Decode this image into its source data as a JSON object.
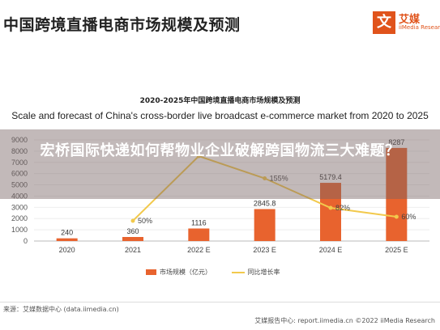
{
  "header": {
    "title": "中国跨境直播电商市场规模及预测",
    "brand_mark": "文",
    "brand_name": "艾媒",
    "brand_sub": "iiMedia Research"
  },
  "chart_data": {
    "type": "bar",
    "title": "2020-2025年中国跨境直播电商市场规模及预测",
    "subtitle": "Scale and forecast of China's cross-border live broadcast e-commerce market from 2020 to 2025",
    "categories": [
      "2020",
      "2021",
      "2022 E",
      "2023 E",
      "2024 E",
      "2025 E"
    ],
    "series": [
      {
        "name": "市场规模（亿元）",
        "type": "bar",
        "values": [
          240,
          360,
          1116,
          2845.8,
          5179.4,
          8287
        ],
        "labels": [
          "240",
          "360",
          "1116",
          "2845.8",
          "5179.4",
          "8287"
        ]
      },
      {
        "name": "同比增长率",
        "type": "line",
        "values": [
          null,
          50,
          210,
          155,
          82,
          60
        ],
        "labels": [
          "",
          "50%",
          "",
          "155%",
          "82%",
          "60%"
        ]
      }
    ],
    "yticks": [
      "0",
      "1000",
      "2000",
      "3000",
      "4000",
      "5000",
      "6000",
      "7000",
      "8000",
      "9000"
    ],
    "ylim": [
      0,
      9000
    ],
    "colors": {
      "bar": "#e8632e",
      "line": "#f2c94c"
    },
    "legend_position": "bottom"
  },
  "overlay": {
    "text": "宏桥国际快递如何帮物业企业破解跨国物流三大难题？"
  },
  "footer": {
    "source_left": "来源：艾媒数据中心 (data.iimedia.cn)",
    "source_right": "艾媒报告中心: report.iimedia.cn  ©2022  iiMedia Research"
  }
}
